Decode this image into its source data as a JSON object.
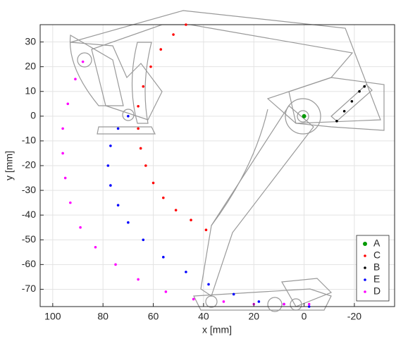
{
  "chart_data": {
    "type": "scatter",
    "xlabel": "x [mm]",
    "ylabel": "y [mm]",
    "xlim": [
      105,
      -36
    ],
    "ylim": [
      -77,
      37
    ],
    "x_reversed": true,
    "xticks": [
      100,
      80,
      60,
      40,
      20,
      0,
      -20
    ],
    "yticks": [
      30,
      20,
      10,
      0,
      -10,
      -20,
      -30,
      -40,
      -50,
      -60,
      -70
    ],
    "grid": true,
    "legend": "lower right",
    "series": [
      {
        "name": "A",
        "color": "#009900",
        "x": [
          0
        ],
        "y": [
          0
        ]
      },
      {
        "name": "C",
        "color": "#ff0000",
        "x": [
          47,
          52,
          57,
          61,
          64,
          66,
          66,
          65,
          63,
          60,
          56,
          51,
          45,
          39
        ],
        "y": [
          37,
          33,
          27,
          20,
          12,
          4,
          -5,
          -13,
          -20,
          -27,
          -33,
          -38,
          -42,
          -46
        ]
      },
      {
        "name": "B",
        "color": "#000000",
        "x": [
          -13,
          -16,
          -19,
          -22,
          -24
        ],
        "y": [
          -2,
          2,
          6,
          10,
          12
        ]
      },
      {
        "name": "E",
        "color": "#0000ff",
        "x": [
          70,
          74,
          77,
          78,
          77,
          74,
          70,
          64,
          56,
          47,
          38,
          28,
          18,
          8,
          -2
        ],
        "y": [
          0,
          -5,
          -12,
          -20,
          -28,
          -36,
          -43,
          -50,
          -57,
          -63,
          -68,
          -72,
          -75,
          -76,
          -77
        ]
      },
      {
        "name": "D",
        "color": "#ff00ff",
        "x": [
          88,
          91,
          94,
          96,
          96,
          95,
          93,
          89,
          83,
          75,
          66,
          55,
          44,
          32,
          20,
          8,
          -2
        ],
        "y": [
          22,
          15,
          5,
          -5,
          -15,
          -25,
          -35,
          -45,
          -53,
          -60,
          -66,
          -71,
          -74,
          -75,
          -76,
          -76,
          -76
        ]
      }
    ]
  }
}
